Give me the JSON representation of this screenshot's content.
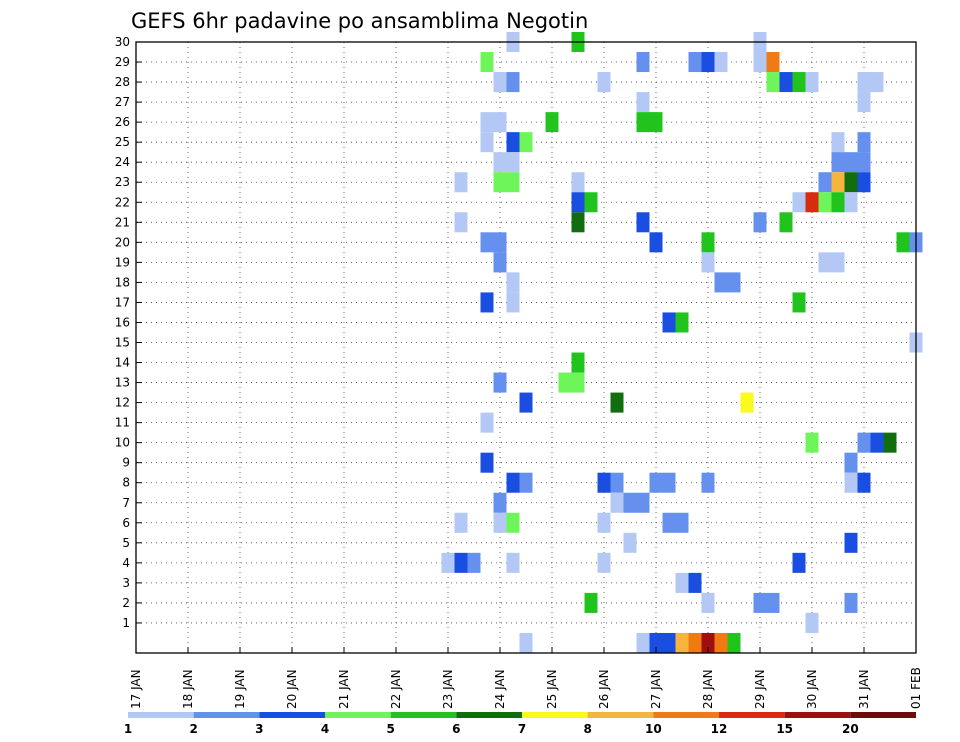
{
  "chart_data": {
    "type": "heatmap",
    "title": "GEFS 6hr padavine po ansamblima Negotin",
    "xlabel": "",
    "ylabel": "",
    "x_range": [
      0,
      60
    ],
    "y_range": [
      0,
      30
    ],
    "x_ticks": [
      {
        "x": 0,
        "label": "17 JAN"
      },
      {
        "x": 4,
        "label": "18 JAN"
      },
      {
        "x": 8,
        "label": "19 JAN"
      },
      {
        "x": 12,
        "label": "20 JAN"
      },
      {
        "x": 16,
        "label": "21 JAN"
      },
      {
        "x": 20,
        "label": "22 JAN"
      },
      {
        "x": 24,
        "label": "23 JAN"
      },
      {
        "x": 28,
        "label": "24 JAN"
      },
      {
        "x": 32,
        "label": "25 JAN"
      },
      {
        "x": 36,
        "label": "26 JAN"
      },
      {
        "x": 40,
        "label": "27 JAN"
      },
      {
        "x": 44,
        "label": "28 JAN"
      },
      {
        "x": 48,
        "label": "29 JAN"
      },
      {
        "x": 52,
        "label": "30 JAN"
      },
      {
        "x": 56,
        "label": "31 JAN"
      },
      {
        "x": 60,
        "label": "01 FEB"
      }
    ],
    "y_ticks": [
      "1",
      "2",
      "3",
      "4",
      "5",
      "6",
      "7",
      "8",
      "9",
      "10",
      "11",
      "12",
      "13",
      "14",
      "15",
      "16",
      "17",
      "18",
      "19",
      "20",
      "21",
      "22",
      "23",
      "24",
      "25",
      "26",
      "27",
      "28",
      "29",
      "30"
    ],
    "grid": true,
    "colorbar": {
      "labels": [
        "1",
        "2",
        "3",
        "4",
        "5",
        "6",
        "7",
        "8",
        "10",
        "12",
        "15",
        "20"
      ],
      "colors": [
        "#b3c8f5",
        "#6690ed",
        "#1a4ee0",
        "#6ef55a",
        "#20c41c",
        "#116d0e",
        "#fafa1e",
        "#f5b43c",
        "#f07a14",
        "#d62c10",
        "#9e1010",
        "#6e0c0c"
      ]
    },
    "cells": [
      {
        "x": 29,
        "y": 30,
        "c": 0
      },
      {
        "x": 34,
        "y": 30,
        "c": 4
      },
      {
        "x": 48,
        "y": 30,
        "c": 0
      },
      {
        "x": 27,
        "y": 29,
        "c": 3
      },
      {
        "x": 39,
        "y": 29,
        "c": 1
      },
      {
        "x": 43,
        "y": 29,
        "c": 1
      },
      {
        "x": 44,
        "y": 29,
        "c": 2
      },
      {
        "x": 45,
        "y": 29,
        "c": 0
      },
      {
        "x": 48,
        "y": 29,
        "c": 0
      },
      {
        "x": 49,
        "y": 29,
        "c": 8
      },
      {
        "x": 28,
        "y": 28,
        "c": 0
      },
      {
        "x": 29,
        "y": 28,
        "c": 1
      },
      {
        "x": 36,
        "y": 28,
        "c": 0
      },
      {
        "x": 49,
        "y": 28,
        "c": 3
      },
      {
        "x": 50,
        "y": 28,
        "c": 2
      },
      {
        "x": 51,
        "y": 28,
        "c": 4
      },
      {
        "x": 52,
        "y": 28,
        "c": 0
      },
      {
        "x": 56,
        "y": 28,
        "c": 0
      },
      {
        "x": 57,
        "y": 28,
        "c": 0
      },
      {
        "x": 39,
        "y": 27,
        "c": 0
      },
      {
        "x": 56,
        "y": 27,
        "c": 0
      },
      {
        "x": 27,
        "y": 26,
        "c": 0
      },
      {
        "x": 28,
        "y": 26,
        "c": 0
      },
      {
        "x": 32,
        "y": 26,
        "c": 4
      },
      {
        "x": 39,
        "y": 26,
        "c": 4
      },
      {
        "x": 40,
        "y": 26,
        "c": 4
      },
      {
        "x": 27,
        "y": 25,
        "c": 0
      },
      {
        "x": 29,
        "y": 25,
        "c": 2
      },
      {
        "x": 30,
        "y": 25,
        "c": 3
      },
      {
        "x": 54,
        "y": 25,
        "c": 0
      },
      {
        "x": 56,
        "y": 25,
        "c": 1
      },
      {
        "x": 28,
        "y": 24,
        "c": 0
      },
      {
        "x": 29,
        "y": 24,
        "c": 0
      },
      {
        "x": 54,
        "y": 24,
        "c": 1
      },
      {
        "x": 55,
        "y": 24,
        "c": 1
      },
      {
        "x": 56,
        "y": 24,
        "c": 1
      },
      {
        "x": 25,
        "y": 23,
        "c": 0
      },
      {
        "x": 28,
        "y": 23,
        "c": 3
      },
      {
        "x": 29,
        "y": 23,
        "c": 3
      },
      {
        "x": 34,
        "y": 23,
        "c": 0
      },
      {
        "x": 53,
        "y": 23,
        "c": 1
      },
      {
        "x": 54,
        "y": 23,
        "c": 7
      },
      {
        "x": 55,
        "y": 23,
        "c": 5
      },
      {
        "x": 56,
        "y": 23,
        "c": 2
      },
      {
        "x": 34,
        "y": 22,
        "c": 2
      },
      {
        "x": 35,
        "y": 22,
        "c": 4
      },
      {
        "x": 51,
        "y": 22,
        "c": 0
      },
      {
        "x": 52,
        "y": 22,
        "c": 9
      },
      {
        "x": 53,
        "y": 22,
        "c": 3
      },
      {
        "x": 54,
        "y": 22,
        "c": 4
      },
      {
        "x": 55,
        "y": 22,
        "c": 0
      },
      {
        "x": 25,
        "y": 21,
        "c": 0
      },
      {
        "x": 34,
        "y": 21,
        "c": 5
      },
      {
        "x": 39,
        "y": 21,
        "c": 2
      },
      {
        "x": 48,
        "y": 21,
        "c": 1
      },
      {
        "x": 50,
        "y": 21,
        "c": 4
      },
      {
        "x": 27,
        "y": 20,
        "c": 1
      },
      {
        "x": 28,
        "y": 20,
        "c": 1
      },
      {
        "x": 40,
        "y": 20,
        "c": 2
      },
      {
        "x": 44,
        "y": 20,
        "c": 4
      },
      {
        "x": 59,
        "y": 20,
        "c": 4
      },
      {
        "x": 60,
        "y": 20,
        "c": 1
      },
      {
        "x": 28,
        "y": 19,
        "c": 1
      },
      {
        "x": 44,
        "y": 19,
        "c": 0
      },
      {
        "x": 53,
        "y": 19,
        "c": 0
      },
      {
        "x": 54,
        "y": 19,
        "c": 0
      },
      {
        "x": 29,
        "y": 18,
        "c": 0
      },
      {
        "x": 45,
        "y": 18,
        "c": 1
      },
      {
        "x": 46,
        "y": 18,
        "c": 1
      },
      {
        "x": 27,
        "y": 17,
        "c": 2
      },
      {
        "x": 29,
        "y": 17,
        "c": 0
      },
      {
        "x": 51,
        "y": 17,
        "c": 4
      },
      {
        "x": 41,
        "y": 16,
        "c": 2
      },
      {
        "x": 42,
        "y": 16,
        "c": 4
      },
      {
        "x": 60,
        "y": 15,
        "c": 0
      },
      {
        "x": 34,
        "y": 14,
        "c": 4
      },
      {
        "x": 28,
        "y": 13,
        "c": 1
      },
      {
        "x": 33,
        "y": 13,
        "c": 3
      },
      {
        "x": 34,
        "y": 13,
        "c": 3
      },
      {
        "x": 30,
        "y": 12,
        "c": 2
      },
      {
        "x": 37,
        "y": 12,
        "c": 5
      },
      {
        "x": 47,
        "y": 12,
        "c": 6
      },
      {
        "x": 27,
        "y": 11,
        "c": 0
      },
      {
        "x": 52,
        "y": 10,
        "c": 3
      },
      {
        "x": 56,
        "y": 10,
        "c": 1
      },
      {
        "x": 57,
        "y": 10,
        "c": 2
      },
      {
        "x": 58,
        "y": 10,
        "c": 5
      },
      {
        "x": 27,
        "y": 9,
        "c": 2
      },
      {
        "x": 55,
        "y": 9,
        "c": 1
      },
      {
        "x": 29,
        "y": 8,
        "c": 2
      },
      {
        "x": 30,
        "y": 8,
        "c": 1
      },
      {
        "x": 36,
        "y": 8,
        "c": 2
      },
      {
        "x": 37,
        "y": 8,
        "c": 1
      },
      {
        "x": 40,
        "y": 8,
        "c": 1
      },
      {
        "x": 41,
        "y": 8,
        "c": 1
      },
      {
        "x": 44,
        "y": 8,
        "c": 1
      },
      {
        "x": 55,
        "y": 8,
        "c": 0
      },
      {
        "x": 56,
        "y": 8,
        "c": 2
      },
      {
        "x": 28,
        "y": 7,
        "c": 1
      },
      {
        "x": 37,
        "y": 7,
        "c": 0
      },
      {
        "x": 38,
        "y": 7,
        "c": 1
      },
      {
        "x": 39,
        "y": 7,
        "c": 1
      },
      {
        "x": 25,
        "y": 6,
        "c": 0
      },
      {
        "x": 28,
        "y": 6,
        "c": 0
      },
      {
        "x": 29,
        "y": 6,
        "c": 3
      },
      {
        "x": 36,
        "y": 6,
        "c": 0
      },
      {
        "x": 41,
        "y": 6,
        "c": 1
      },
      {
        "x": 42,
        "y": 6,
        "c": 1
      },
      {
        "x": 38,
        "y": 5,
        "c": 0
      },
      {
        "x": 55,
        "y": 5,
        "c": 2
      },
      {
        "x": 24,
        "y": 4,
        "c": 0
      },
      {
        "x": 25,
        "y": 4,
        "c": 2
      },
      {
        "x": 26,
        "y": 4,
        "c": 1
      },
      {
        "x": 29,
        "y": 4,
        "c": 0
      },
      {
        "x": 36,
        "y": 4,
        "c": 0
      },
      {
        "x": 51,
        "y": 4,
        "c": 2
      },
      {
        "x": 42,
        "y": 3,
        "c": 0
      },
      {
        "x": 43,
        "y": 3,
        "c": 2
      },
      {
        "x": 35,
        "y": 2,
        "c": 4
      },
      {
        "x": 44,
        "y": 2,
        "c": 0
      },
      {
        "x": 48,
        "y": 2,
        "c": 1
      },
      {
        "x": 49,
        "y": 2,
        "c": 1
      },
      {
        "x": 55,
        "y": 2,
        "c": 1
      },
      {
        "x": 52,
        "y": 1,
        "c": 0
      },
      {
        "x": 30,
        "y": 0,
        "c": 0
      },
      {
        "x": 39,
        "y": 0,
        "c": 0
      },
      {
        "x": 40,
        "y": 0,
        "c": 2
      },
      {
        "x": 41,
        "y": 0,
        "c": 2
      },
      {
        "x": 42,
        "y": 0,
        "c": 7
      },
      {
        "x": 43,
        "y": 0,
        "c": 8
      },
      {
        "x": 44,
        "y": 0,
        "c": 10
      },
      {
        "x": 45,
        "y": 0,
        "c": 8
      },
      {
        "x": 46,
        "y": 0,
        "c": 4
      }
    ]
  }
}
